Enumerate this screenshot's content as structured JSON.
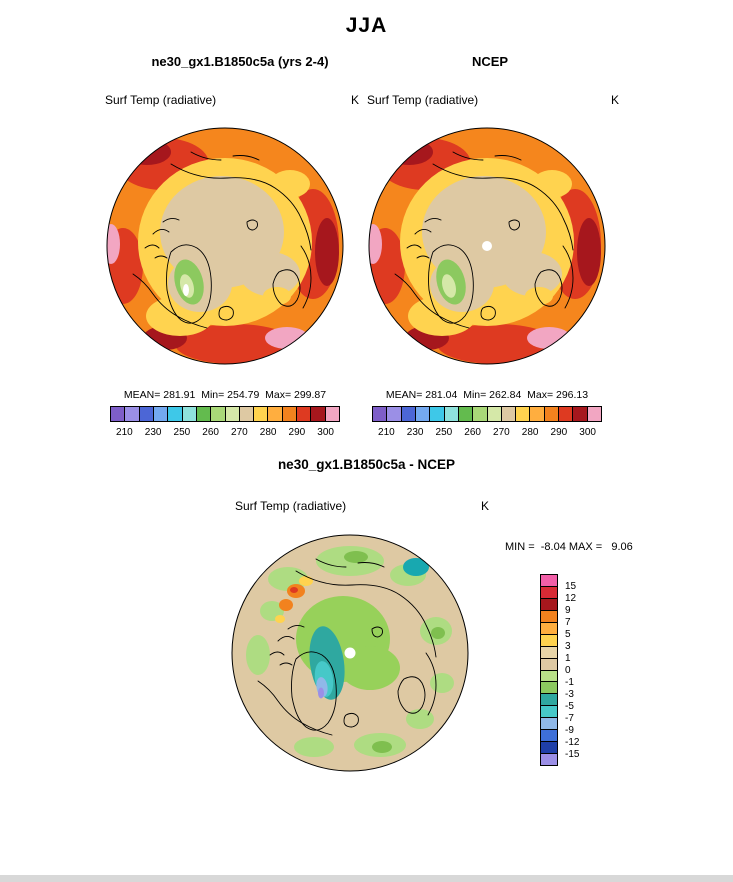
{
  "title": "JJA",
  "model_panel": {
    "column_title": "ne30_gx1.B1850c5a (yrs 2-4)",
    "field_label": "Surf Temp (radiative)",
    "units": "K",
    "stats": "MEAN= 281.91  Min= 254.79  Max= 299.87"
  },
  "obs_panel": {
    "column_title": "NCEP",
    "field_label": "Surf Temp (radiative)",
    "units": "K",
    "stats": "MEAN= 281.04  Min= 262.84  Max= 296.13"
  },
  "diff_panel": {
    "section_title": "ne30_gx1.B1850c5a - NCEP",
    "field_label": "Surf Temp (radiative)",
    "units": "K",
    "minmax": "MIN =  -8.04 MAX =   9.06"
  },
  "temp_colorbar": {
    "tick_labels": [
      "210",
      "230",
      "250",
      "260",
      "270",
      "280",
      "290",
      "300"
    ],
    "colors": [
      "#7E5EC8",
      "#9B8FE6",
      "#4C66D6",
      "#74A9F0",
      "#3EC8E8",
      "#8FE2DC",
      "#63BB4E",
      "#A9D878",
      "#D5E8A8",
      "#DEC9A3",
      "#FFD34F",
      "#FFAE3F",
      "#F2821E",
      "#DE3A21",
      "#A6171D",
      "#F2A6C2"
    ]
  },
  "diff_colorbar": {
    "labels": [
      "15",
      "12",
      "9",
      "7",
      "5",
      "3",
      "1",
      "0",
      "-1",
      "-3",
      "-5",
      "-7",
      "-9",
      "-12",
      "-15"
    ],
    "colors": [
      "#F25FA8",
      "#D82A35",
      "#A6171D",
      "#F2821E",
      "#FFAE3F",
      "#FFD34F",
      "#E8D5A8",
      "#DEC9A3",
      "#B8E088",
      "#8CC95F",
      "#2FA8A0",
      "#46C8C8",
      "#8FB8E8",
      "#3E6FD8",
      "#1F3FA8",
      "#9B8FE6"
    ]
  },
  "chart_data": [
    {
      "type": "heatmap",
      "subtype": "polar-stereographic-map",
      "season": "JJA",
      "dataset": "ne30_gx1.B1850c5a (yrs 2-4)",
      "variable": "Surf Temp (radiative)",
      "units": "K",
      "mean": 281.91,
      "min": 254.79,
      "max": 299.87,
      "colorbar_ticks": [
        210,
        230,
        250,
        260,
        270,
        280,
        290,
        300
      ],
      "legend_position": "bottom"
    },
    {
      "type": "heatmap",
      "subtype": "polar-stereographic-map",
      "season": "JJA",
      "dataset": "NCEP",
      "variable": "Surf Temp (radiative)",
      "units": "K",
      "mean": 281.04,
      "min": 262.84,
      "max": 296.13,
      "colorbar_ticks": [
        210,
        230,
        250,
        260,
        270,
        280,
        290,
        300
      ],
      "legend_position": "bottom"
    },
    {
      "type": "heatmap",
      "subtype": "polar-stereographic-map",
      "season": "JJA",
      "dataset": "ne30_gx1.B1850c5a - NCEP",
      "variable": "Surf Temp (radiative)",
      "units": "K",
      "min": -8.04,
      "max": 9.06,
      "colorbar_ticks": [
        15,
        12,
        9,
        7,
        5,
        3,
        1,
        0,
        -1,
        -3,
        -5,
        -7,
        -9,
        -12,
        -15
      ],
      "legend_position": "right"
    }
  ]
}
